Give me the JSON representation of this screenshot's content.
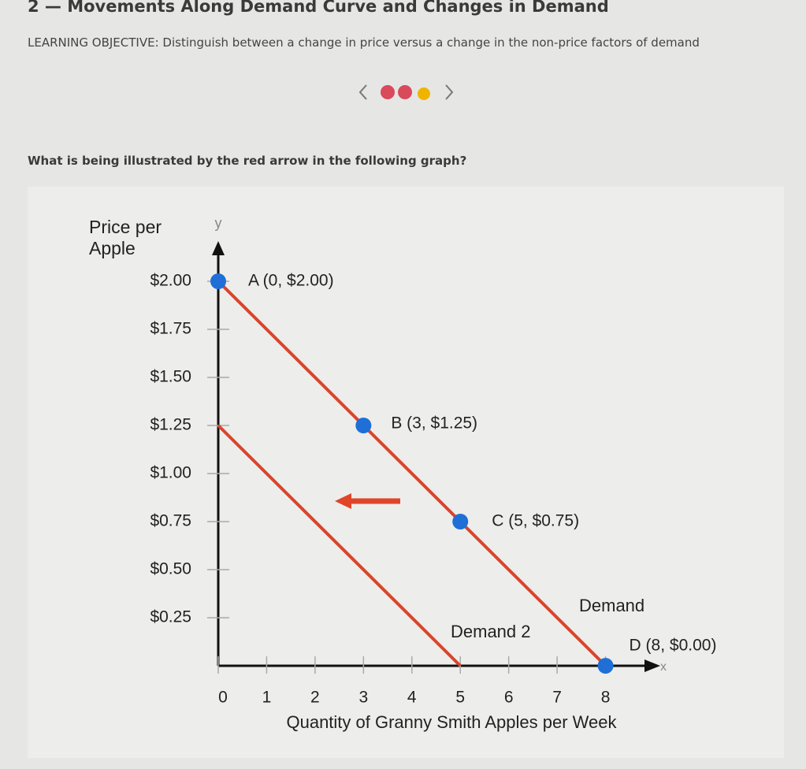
{
  "header": {
    "title": "2 — Movements Along Demand Curve and Changes in Demand",
    "objective_label": "LEARNING OBJECTIVE:",
    "objective": "Distinguish between a change in price versus a change in the non-price factors of demand"
  },
  "question": "What is being illustrated by the red arrow in the following graph?",
  "chart_data": {
    "type": "line",
    "ylabel": "Price per Apple",
    "xlabel": "Quantity of Granny Smith Apples per Week",
    "y_axis_letter": "y",
    "x_axis_letter": "x",
    "xlim": [
      0,
      9
    ],
    "ylim": [
      0,
      2.25
    ],
    "xticks": [
      0,
      1,
      2,
      3,
      4,
      5,
      6,
      7,
      8
    ],
    "yticks": [
      {
        "value": 0.25,
        "label": "$0.25"
      },
      {
        "value": 0.5,
        "label": "$0.50"
      },
      {
        "value": 0.75,
        "label": "$0.75"
      },
      {
        "value": 1,
        "label": "$1.00"
      },
      {
        "value": 1.25,
        "label": "$1.25"
      },
      {
        "value": 1.5,
        "label": "$1.50"
      },
      {
        "value": 1.75,
        "label": "$1.75"
      },
      {
        "value": 2,
        "label": "$2.00"
      }
    ],
    "marker_color": "#1f6fd6",
    "series": [
      {
        "name": "Demand",
        "color": "#d9452b",
        "x": [
          0,
          3,
          5,
          8
        ],
        "values": [
          2,
          1.25,
          0.75,
          0
        ],
        "markers": true,
        "value_labels": [
          "A (0, $2.00)",
          "B (3, $1.25)",
          "C (5, $0.75)",
          "D (8, $0.00)"
        ]
      },
      {
        "name": "Demand 2",
        "color": "#d9452b",
        "x": [
          0,
          5
        ],
        "values": [
          1.25,
          0
        ],
        "markers": false
      }
    ]
  }
}
